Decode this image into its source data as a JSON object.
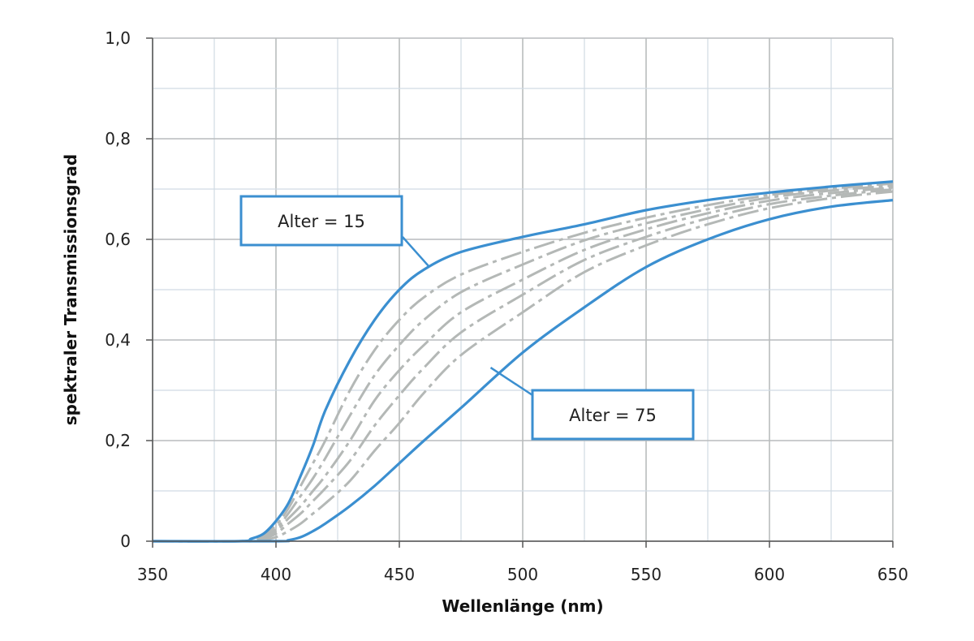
{
  "chart_data": {
    "type": "line",
    "title": "",
    "xlabel": "Wellenlänge (nm)",
    "ylabel": "spektraler Transmissionsgrad",
    "xlim": [
      350,
      650
    ],
    "ylim": [
      0,
      1.0
    ],
    "xticks": [
      350,
      400,
      450,
      500,
      550,
      600,
      650
    ],
    "xtick_labels": [
      "350",
      "400",
      "450",
      "500",
      "550",
      "600",
      "650"
    ],
    "yticks": [
      0,
      0.2,
      0.4,
      0.6,
      0.8,
      1.0
    ],
    "ytick_labels": [
      "0",
      "0,2",
      "0,4",
      "0,6",
      "0,8",
      "1,0"
    ],
    "grid": true,
    "colors": {
      "highlight": "#3b8fd0",
      "intermediate": "#b4b8b6",
      "grid": "#d0dae3",
      "grid_major": "#b9bcbd"
    },
    "series": [
      {
        "name": "Alter = 15",
        "style": "solid",
        "highlight": true,
        "x": [
          350,
          385,
          390,
          395,
          400,
          405,
          410,
          415,
          420,
          430,
          440,
          450,
          460,
          475,
          500,
          525,
          550,
          575,
          600,
          625,
          650
        ],
        "y": [
          0,
          0,
          0.005,
          0.015,
          0.04,
          0.075,
          0.13,
          0.19,
          0.26,
          0.36,
          0.44,
          0.5,
          0.54,
          0.575,
          0.605,
          0.63,
          0.658,
          0.678,
          0.693,
          0.705,
          0.715
        ]
      },
      {
        "style": "dash-dot",
        "highlight": false,
        "x": [
          350,
          385,
          390,
          395,
          400,
          405,
          410,
          415,
          420,
          430,
          440,
          450,
          460,
          475,
          500,
          525,
          550,
          575,
          600,
          625,
          650
        ],
        "y": [
          0,
          0,
          0.004,
          0.013,
          0.032,
          0.065,
          0.11,
          0.155,
          0.2,
          0.3,
          0.38,
          0.44,
          0.485,
          0.53,
          0.575,
          0.613,
          0.643,
          0.668,
          0.688,
          0.701,
          0.711
        ]
      },
      {
        "style": "dash-dot",
        "highlight": false,
        "x": [
          350,
          385,
          390,
          395,
          400,
          405,
          410,
          415,
          420,
          430,
          440,
          450,
          460,
          475,
          500,
          525,
          550,
          575,
          600,
          625,
          650
        ],
        "y": [
          0,
          0,
          0.003,
          0.01,
          0.025,
          0.055,
          0.09,
          0.125,
          0.165,
          0.25,
          0.33,
          0.39,
          0.44,
          0.495,
          0.55,
          0.598,
          0.632,
          0.66,
          0.683,
          0.697,
          0.707
        ]
      },
      {
        "style": "dash-dot",
        "highlight": false,
        "x": [
          350,
          385,
          390,
          395,
          400,
          405,
          410,
          415,
          420,
          430,
          440,
          450,
          460,
          475,
          500,
          525,
          550,
          575,
          600,
          625,
          650
        ],
        "y": [
          0,
          0,
          0.002,
          0.008,
          0.02,
          0.045,
          0.07,
          0.1,
          0.13,
          0.2,
          0.28,
          0.34,
          0.39,
          0.455,
          0.52,
          0.579,
          0.62,
          0.652,
          0.677,
          0.692,
          0.703
        ]
      },
      {
        "style": "dash-dot",
        "highlight": false,
        "x": [
          350,
          385,
          390,
          395,
          400,
          405,
          410,
          415,
          420,
          430,
          440,
          450,
          460,
          475,
          500,
          525,
          550,
          575,
          600,
          625,
          650
        ],
        "y": [
          0,
          0,
          0.001,
          0.005,
          0.015,
          0.035,
          0.055,
          0.08,
          0.105,
          0.16,
          0.23,
          0.29,
          0.345,
          0.415,
          0.49,
          0.559,
          0.605,
          0.642,
          0.67,
          0.687,
          0.699
        ]
      },
      {
        "style": "dash-dot",
        "highlight": false,
        "x": [
          350,
          385,
          390,
          395,
          400,
          405,
          410,
          415,
          420,
          430,
          440,
          450,
          460,
          475,
          500,
          525,
          550,
          575,
          600,
          625,
          650
        ],
        "y": [
          0,
          0,
          0.0,
          0.002,
          0.008,
          0.02,
          0.035,
          0.055,
          0.075,
          0.12,
          0.18,
          0.235,
          0.295,
          0.37,
          0.455,
          0.535,
          0.588,
          0.63,
          0.662,
          0.682,
          0.695
        ]
      },
      {
        "name": "Alter = 75",
        "style": "solid",
        "highlight": true,
        "x": [
          350,
          400,
          405,
          410,
          415,
          420,
          430,
          440,
          450,
          460,
          475,
          500,
          525,
          550,
          575,
          600,
          625,
          650
        ],
        "y": [
          0,
          0,
          0.002,
          0.008,
          0.02,
          0.035,
          0.07,
          0.11,
          0.155,
          0.2,
          0.265,
          0.375,
          0.465,
          0.545,
          0.6,
          0.64,
          0.665,
          0.678
        ]
      }
    ],
    "annotations": [
      {
        "text": "Alter = 15",
        "series": "Alter = 15",
        "points_to": [
          462,
          0.546
        ]
      },
      {
        "text": "Alter = 75",
        "series": "Alter = 75",
        "points_to": [
          487,
          0.345
        ]
      }
    ]
  }
}
